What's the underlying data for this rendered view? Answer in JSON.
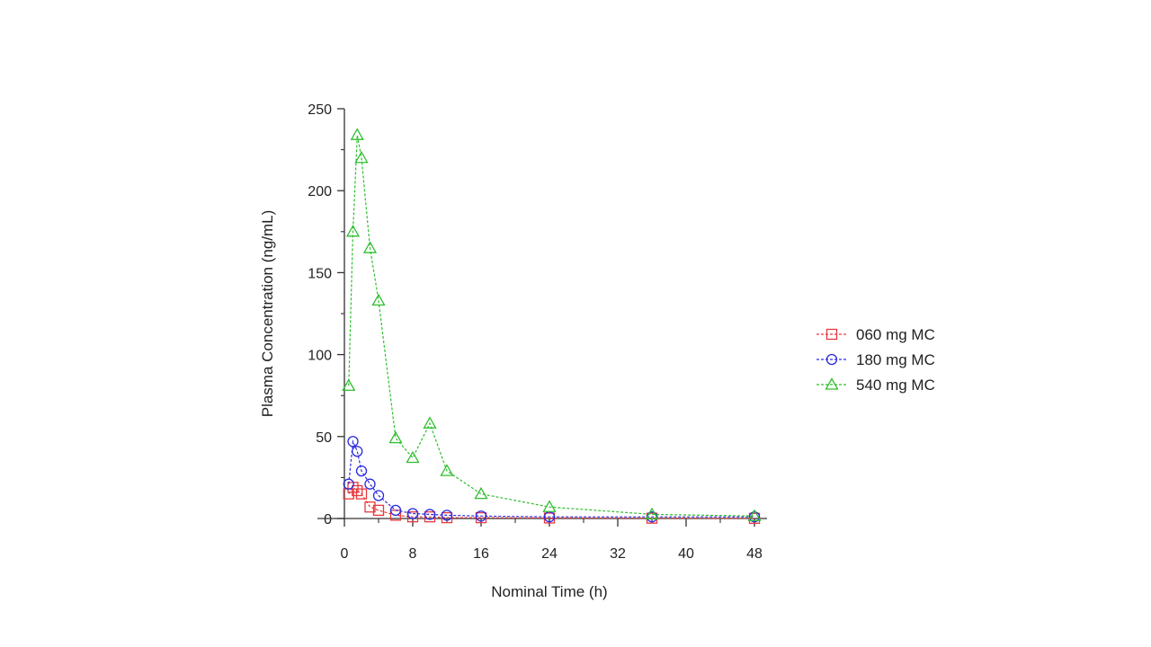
{
  "chart_data": {
    "type": "line",
    "title": "",
    "xlabel": "Nominal Time (h)",
    "ylabel": "Plasma Concentration (ng/mL)",
    "xlim": [
      0,
      48
    ],
    "ylim": [
      0,
      250
    ],
    "x_ticks": [
      0,
      8,
      16,
      24,
      32,
      40,
      48
    ],
    "x_minor_ticks": [
      4,
      12,
      20,
      28,
      36,
      44
    ],
    "y_ticks": [
      0,
      50,
      100,
      150,
      200,
      250
    ],
    "y_minor_ticks": [
      25,
      75,
      125,
      175,
      225
    ],
    "grid": false,
    "legend_position": "right",
    "series": [
      {
        "name": "060 mg MC",
        "color": "#e8383d",
        "marker": "square",
        "x": [
          0.5,
          1,
          1.5,
          2,
          3,
          4,
          6,
          8,
          10,
          12,
          16,
          24,
          36,
          48
        ],
        "y": [
          15,
          19,
          17,
          15,
          7,
          5,
          2,
          1,
          1,
          0.5,
          0.5,
          0.3,
          0.2,
          0.1
        ]
      },
      {
        "name": "180 mg MC",
        "color": "#2a2ae0",
        "marker": "circle",
        "x": [
          0.5,
          1,
          1.5,
          2,
          3,
          4,
          6,
          8,
          10,
          12,
          16,
          24,
          36,
          48
        ],
        "y": [
          21,
          47,
          41,
          29,
          21,
          14,
          5,
          3,
          2.5,
          2,
          1.5,
          1,
          1,
          1
        ]
      },
      {
        "name": "540 mg MC",
        "color": "#2fbf2f",
        "marker": "triangle",
        "x": [
          0.5,
          1,
          1.5,
          2,
          3,
          4,
          6,
          8,
          10,
          12,
          16,
          24,
          36,
          48
        ],
        "y": [
          81,
          175,
          234,
          220,
          165,
          133,
          49,
          37,
          58,
          29,
          15,
          7,
          2.5,
          1.5
        ]
      }
    ]
  }
}
